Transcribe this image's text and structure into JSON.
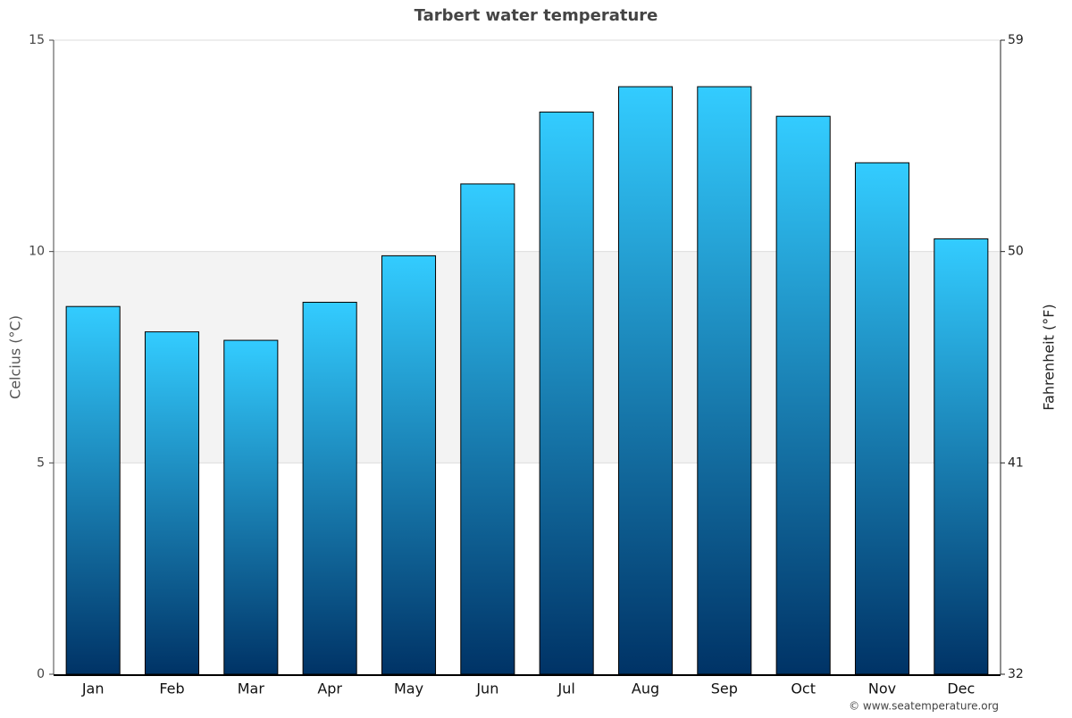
{
  "chart_data": {
    "type": "bar",
    "title": "Tarbert water temperature",
    "categories": [
      "Jan",
      "Feb",
      "Mar",
      "Apr",
      "May",
      "Jun",
      "Jul",
      "Aug",
      "Sep",
      "Oct",
      "Nov",
      "Dec"
    ],
    "values": [
      8.7,
      8.1,
      7.9,
      8.8,
      9.9,
      11.6,
      13.3,
      13.9,
      13.9,
      13.2,
      12.1,
      10.3
    ],
    "color": [
      "#33ccff",
      "#003366"
    ],
    "ylabel": "Celcius (°C)",
    "y2label": "Fahrenheit (°F)",
    "ylim": [
      0,
      15
    ],
    "yticks": [
      0,
      5,
      10,
      15
    ],
    "y2lim": [
      32,
      59
    ],
    "y2ticks": [
      32,
      41,
      50,
      59
    ],
    "shaded_band": [
      5,
      10
    ],
    "grid": true,
    "credit": "© www.seatemperature.org"
  }
}
